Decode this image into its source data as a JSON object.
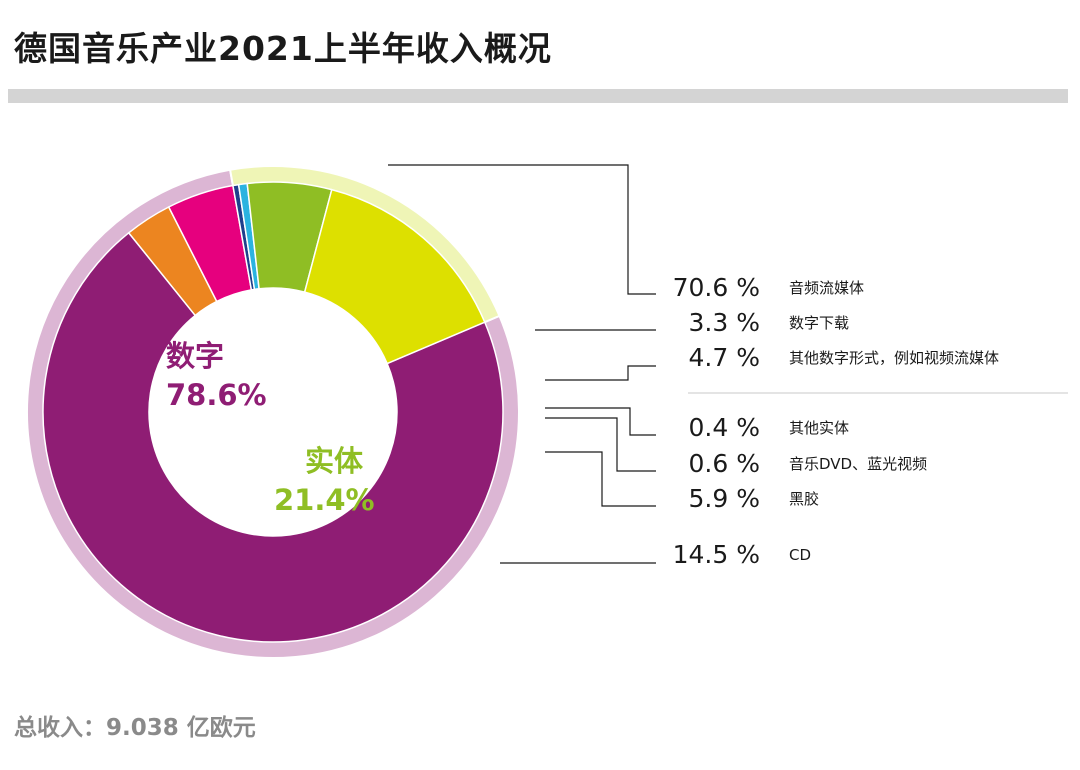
{
  "title": "德国音乐产业2021上半年收入概况",
  "footer": "总收入：9.038 亿欧元",
  "colors": {
    "digital": "#8f1d74",
    "digital_light": "#dcb6d4",
    "physical": "#8fbe24",
    "physical_light": "#eff5b6"
  },
  "groups": {
    "digital": {
      "name": "数字",
      "value": "78.6%"
    },
    "physical": {
      "name": "实体",
      "value": "21.4%"
    }
  },
  "chart_data": {
    "type": "pie",
    "title": "德国音乐产业2021上半年收入概况",
    "style": "donut",
    "unit": "%",
    "outer_ring": [
      {
        "name": "数字",
        "value": 78.6,
        "color": "#dcb6d4"
      },
      {
        "name": "实体",
        "value": 21.4,
        "color": "#eff5b6"
      }
    ],
    "slices": [
      {
        "label": "音频流媒体",
        "value": 70.6,
        "display": "70.6 %",
        "color": "#8f1d74"
      },
      {
        "label": "数字下载",
        "value": 3.3,
        "display": "3.3 %",
        "color": "#ec8520"
      },
      {
        "label": "其他数字形式，例如视频流媒体",
        "value": 4.7,
        "display": "4.7 %",
        "color": "#e6007e"
      },
      {
        "label": "其他实体",
        "value": 0.4,
        "display": "0.4 %",
        "color": "#1f3f8c"
      },
      {
        "label": "音乐DVD、蓝光视频",
        "value": 0.6,
        "display": "0.6 %",
        "color": "#2bb3e0"
      },
      {
        "label": "黑胶",
        "value": 5.9,
        "display": "5.9 %",
        "color": "#8fbe24"
      },
      {
        "label": "CD",
        "value": 14.5,
        "display": "14.5 %",
        "color": "#dde000"
      }
    ],
    "total_note": "总收入：9.038 亿欧元"
  }
}
